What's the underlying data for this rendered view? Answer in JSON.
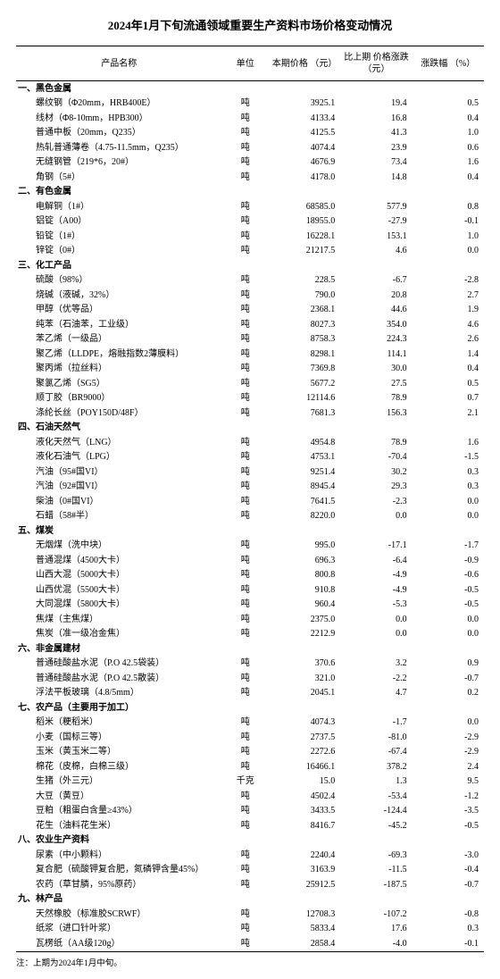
{
  "title": "2024年1月下旬流通领域重要生产资料市场价格变动情况",
  "footnote": "注：上期为2024年1月中旬。",
  "headers": {
    "name": "产品名称",
    "unit": "单位",
    "price": "本期价格\n（元）",
    "delta": "比上期\n价格涨跌\n（元）",
    "pct": "涨跌幅\n（%）"
  },
  "sections": [
    {
      "label": "一、黑色金属",
      "rows": [
        {
          "name": "螺纹钢（Φ20mm，HRB400E）",
          "unit": "吨",
          "price": "3925.1",
          "delta": "19.4",
          "pct": "0.5"
        },
        {
          "name": "线材（Φ8-10mm，HPB300）",
          "unit": "吨",
          "price": "4133.4",
          "delta": "16.8",
          "pct": "0.4"
        },
        {
          "name": "普通中板（20mm，Q235）",
          "unit": "吨",
          "price": "4125.5",
          "delta": "41.3",
          "pct": "1.0"
        },
        {
          "name": "热轧普通薄卷（4.75-11.5mm，Q235）",
          "unit": "吨",
          "price": "4074.4",
          "delta": "23.9",
          "pct": "0.6"
        },
        {
          "name": "无缝钢管（219*6，20#）",
          "unit": "吨",
          "price": "4676.9",
          "delta": "73.4",
          "pct": "1.6"
        },
        {
          "name": "角钢（5#）",
          "unit": "吨",
          "price": "4178.0",
          "delta": "14.8",
          "pct": "0.4"
        }
      ]
    },
    {
      "label": "二、有色金属",
      "rows": [
        {
          "name": "电解铜（1#）",
          "unit": "吨",
          "price": "68585.0",
          "delta": "577.9",
          "pct": "0.8"
        },
        {
          "name": "铝锭（A00）",
          "unit": "吨",
          "price": "18955.0",
          "delta": "-27.9",
          "pct": "-0.1"
        },
        {
          "name": "铅锭（1#）",
          "unit": "吨",
          "price": "16228.1",
          "delta": "153.1",
          "pct": "1.0"
        },
        {
          "name": "锌锭（0#）",
          "unit": "吨",
          "price": "21217.5",
          "delta": "4.6",
          "pct": "0.0"
        }
      ]
    },
    {
      "label": "三、化工产品",
      "rows": [
        {
          "name": "硫酸（98%）",
          "unit": "吨",
          "price": "228.5",
          "delta": "-6.7",
          "pct": "-2.8"
        },
        {
          "name": "烧碱（液碱，32%）",
          "unit": "吨",
          "price": "790.0",
          "delta": "20.8",
          "pct": "2.7"
        },
        {
          "name": "甲醇（优等品）",
          "unit": "吨",
          "price": "2368.1",
          "delta": "44.6",
          "pct": "1.9"
        },
        {
          "name": "纯苯（石油苯，工业级）",
          "unit": "吨",
          "price": "8027.3",
          "delta": "354.0",
          "pct": "4.6"
        },
        {
          "name": "苯乙烯（一级品）",
          "unit": "吨",
          "price": "8758.3",
          "delta": "224.3",
          "pct": "2.6"
        },
        {
          "name": "聚乙烯（LLDPE，熔融指数2薄膜料）",
          "unit": "吨",
          "price": "8298.1",
          "delta": "114.1",
          "pct": "1.4"
        },
        {
          "name": "聚丙烯（拉丝料）",
          "unit": "吨",
          "price": "7369.8",
          "delta": "30.0",
          "pct": "0.4"
        },
        {
          "name": "聚氯乙烯（SG5）",
          "unit": "吨",
          "price": "5677.2",
          "delta": "27.5",
          "pct": "0.5"
        },
        {
          "name": "顺丁胶（BR9000）",
          "unit": "吨",
          "price": "12114.6",
          "delta": "78.9",
          "pct": "0.7"
        },
        {
          "name": "涤纶长丝（POY150D/48F）",
          "unit": "吨",
          "price": "7681.3",
          "delta": "156.3",
          "pct": "2.1"
        }
      ]
    },
    {
      "label": "四、石油天然气",
      "rows": [
        {
          "name": "液化天然气（LNG）",
          "unit": "吨",
          "price": "4954.8",
          "delta": "78.9",
          "pct": "1.6"
        },
        {
          "name": "液化石油气（LPG）",
          "unit": "吨",
          "price": "4753.1",
          "delta": "-70.4",
          "pct": "-1.5"
        },
        {
          "name": "汽油（95#国VI）",
          "unit": "吨",
          "price": "9251.4",
          "delta": "30.2",
          "pct": "0.3"
        },
        {
          "name": "汽油（92#国VI）",
          "unit": "吨",
          "price": "8945.4",
          "delta": "29.3",
          "pct": "0.3"
        },
        {
          "name": "柴油（0#国VI）",
          "unit": "吨",
          "price": "7641.5",
          "delta": "-2.3",
          "pct": "0.0"
        },
        {
          "name": "石蜡（58#半）",
          "unit": "吨",
          "price": "8220.0",
          "delta": "0.0",
          "pct": "0.0"
        }
      ]
    },
    {
      "label": "五、煤炭",
      "rows": [
        {
          "name": "无烟煤（洗中块）",
          "unit": "吨",
          "price": "995.0",
          "delta": "-17.1",
          "pct": "-1.7"
        },
        {
          "name": "普通混煤（4500大卡）",
          "unit": "吨",
          "price": "696.3",
          "delta": "-6.4",
          "pct": "-0.9"
        },
        {
          "name": "山西大混（5000大卡）",
          "unit": "吨",
          "price": "800.8",
          "delta": "-4.9",
          "pct": "-0.6"
        },
        {
          "name": "山西优混（5500大卡）",
          "unit": "吨",
          "price": "910.8",
          "delta": "-4.9",
          "pct": "-0.5"
        },
        {
          "name": "大同混煤（5800大卡）",
          "unit": "吨",
          "price": "960.4",
          "delta": "-5.3",
          "pct": "-0.5"
        },
        {
          "name": "焦煤（主焦煤）",
          "unit": "吨",
          "price": "2375.0",
          "delta": "0.0",
          "pct": "0.0"
        },
        {
          "name": "焦炭（准一级冶金焦）",
          "unit": "吨",
          "price": "2212.9",
          "delta": "0.0",
          "pct": "0.0"
        }
      ]
    },
    {
      "label": "六、非金属建材",
      "rows": [
        {
          "name": "普通硅酸盐水泥（P.O 42.5袋装）",
          "unit": "吨",
          "price": "370.6",
          "delta": "3.2",
          "pct": "0.9"
        },
        {
          "name": "普通硅酸盐水泥（P.O 42.5散装）",
          "unit": "吨",
          "price": "321.0",
          "delta": "-2.2",
          "pct": "-0.7"
        },
        {
          "name": "浮法平板玻璃（4.8/5mm）",
          "unit": "吨",
          "price": "2045.1",
          "delta": "4.7",
          "pct": "0.2"
        }
      ]
    },
    {
      "label": "七、农产品（主要用于加工）",
      "rows": [
        {
          "name": "稻米（粳稻米）",
          "unit": "吨",
          "price": "4074.3",
          "delta": "-1.7",
          "pct": "0.0"
        },
        {
          "name": "小麦（国标三等）",
          "unit": "吨",
          "price": "2737.5",
          "delta": "-81.0",
          "pct": "-2.9"
        },
        {
          "name": "玉米（黄玉米二等）",
          "unit": "吨",
          "price": "2272.6",
          "delta": "-67.4",
          "pct": "-2.9"
        },
        {
          "name": "棉花（皮棉，白棉三级）",
          "unit": "吨",
          "price": "16466.1",
          "delta": "378.2",
          "pct": "2.4"
        },
        {
          "name": "生猪（外三元）",
          "unit": "千克",
          "price": "15.0",
          "delta": "1.3",
          "pct": "9.5"
        },
        {
          "name": "大豆（黄豆）",
          "unit": "吨",
          "price": "4502.4",
          "delta": "-53.4",
          "pct": "-1.2"
        },
        {
          "name": "豆粕（粗蛋白含量≥43%）",
          "unit": "吨",
          "price": "3433.5",
          "delta": "-124.4",
          "pct": "-3.5"
        },
        {
          "name": "花生（油料花生米）",
          "unit": "吨",
          "price": "8416.7",
          "delta": "-45.2",
          "pct": "-0.5"
        }
      ]
    },
    {
      "label": "八、农业生产资料",
      "rows": [
        {
          "name": "尿素（中小颗料）",
          "unit": "吨",
          "price": "2240.4",
          "delta": "-69.3",
          "pct": "-3.0"
        },
        {
          "name": "复合肥（硫酸钾复合肥，氮磷钾含量45%）",
          "unit": "吨",
          "price": "3163.9",
          "delta": "-11.5",
          "pct": "-0.4"
        },
        {
          "name": "农药（草甘膦，95%原药）",
          "unit": "吨",
          "price": "25912.5",
          "delta": "-187.5",
          "pct": "-0.7"
        }
      ]
    },
    {
      "label": "九、林产品",
      "rows": [
        {
          "name": "天然橡胶（标准胶SCRWF）",
          "unit": "吨",
          "price": "12708.3",
          "delta": "-107.2",
          "pct": "-0.8"
        },
        {
          "name": "纸浆（进口针叶浆）",
          "unit": "吨",
          "price": "5833.4",
          "delta": "17.6",
          "pct": "0.3"
        },
        {
          "name": "瓦楞纸（AA级120g）",
          "unit": "吨",
          "price": "2858.4",
          "delta": "-4.0",
          "pct": "-0.1"
        }
      ]
    }
  ]
}
